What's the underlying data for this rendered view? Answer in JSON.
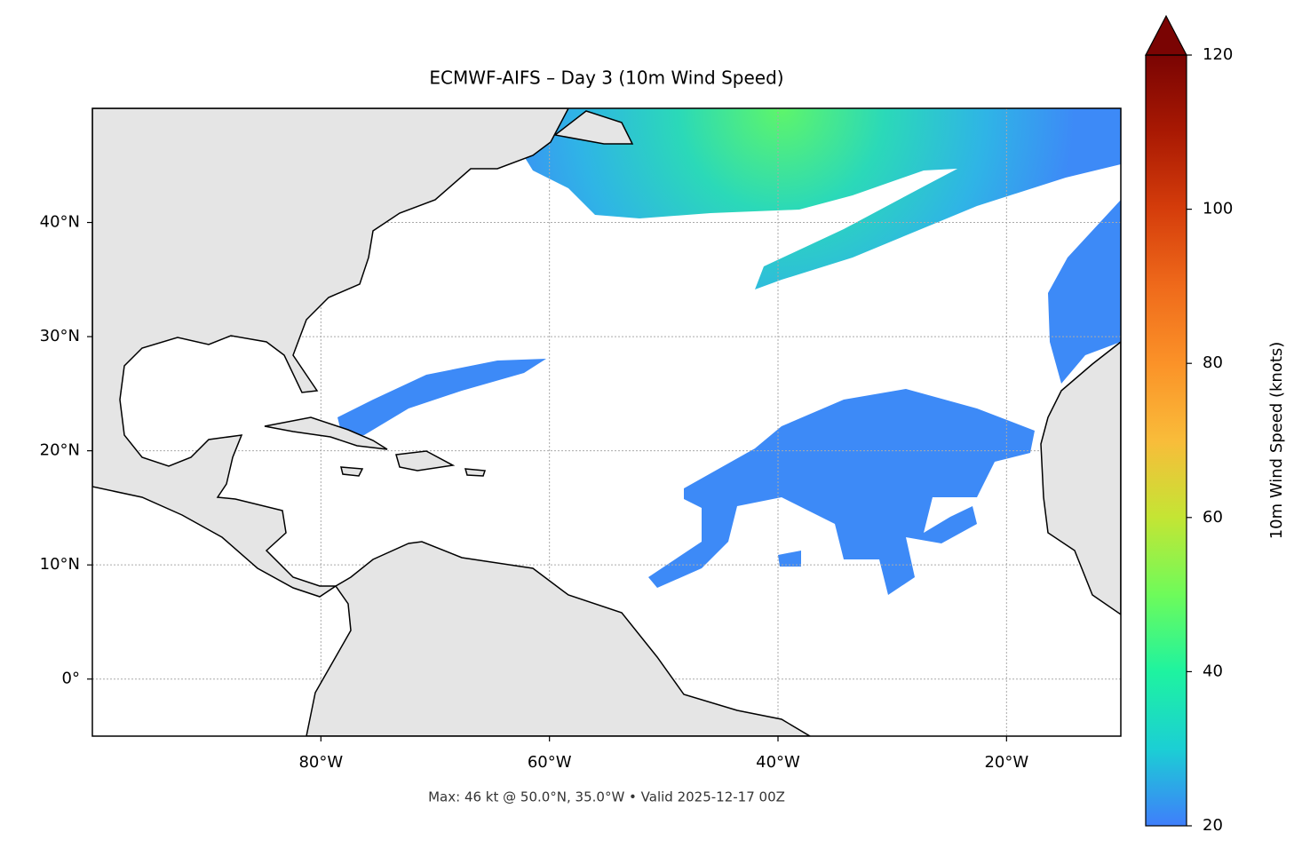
{
  "chart_data": {
    "type": "map",
    "title": "ECMWF-AIFS – Day 3 (10m Wind Speed)",
    "annotation": "Max: 46 kt @ 50.0°N, 35.0°W • Valid 2025-12-17 00Z",
    "xlim": [
      -100,
      -10
    ],
    "ylim": [
      -5,
      50
    ],
    "xticks": [
      {
        "value": -80,
        "label": "80°W"
      },
      {
        "value": -60,
        "label": "60°W"
      },
      {
        "value": -40,
        "label": "40°W"
      },
      {
        "value": -20,
        "label": "20°W"
      }
    ],
    "yticks": [
      {
        "value": 0,
        "label": "0°"
      },
      {
        "value": 10,
        "label": "10°N"
      },
      {
        "value": 20,
        "label": "20°N"
      },
      {
        "value": 30,
        "label": "30°N"
      },
      {
        "value": 40,
        "label": "40°N"
      }
    ],
    "grid": true,
    "colorbar": {
      "label": "10m Wind Speed (knots)",
      "lim": [
        20,
        120
      ],
      "ticks": [
        20,
        40,
        60,
        80,
        100,
        120
      ],
      "extend": "max",
      "colormap": [
        "#3f7efb",
        "#1bcfd4",
        "#1ef3a0",
        "#6efb5a",
        "#c4e534",
        "#f9bc3a",
        "#fb9228",
        "#ef6a1b",
        "#d53d0b",
        "#a91903",
        "#7a0403"
      ]
    }
  }
}
